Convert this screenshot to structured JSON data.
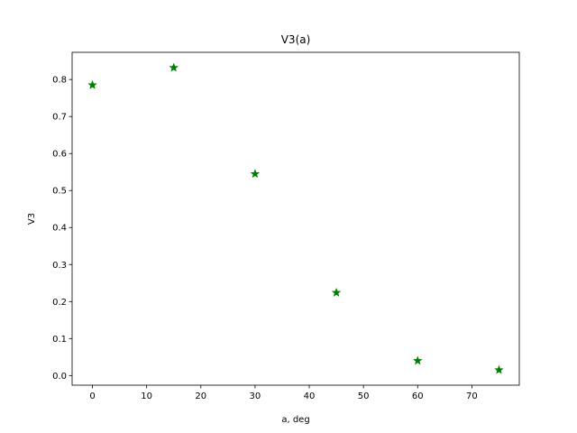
{
  "chart_data": {
    "type": "scatter",
    "title": "V3(a)",
    "xlabel": "a, deg",
    "ylabel": "V3",
    "x": [
      0,
      15,
      30,
      45,
      60,
      75
    ],
    "y": [
      0.785,
      0.832,
      0.545,
      0.224,
      0.04,
      0.015
    ],
    "xlim": [
      -3.75,
      78.75
    ],
    "ylim": [
      -0.026,
      0.8735
    ],
    "xticks": [
      0,
      10,
      20,
      30,
      40,
      50,
      60,
      70
    ],
    "yticks": [
      0.0,
      0.1,
      0.2,
      0.3,
      0.4,
      0.5,
      0.6,
      0.7,
      0.8
    ],
    "marker": "star",
    "marker_color": "#008000",
    "grid": false,
    "legend": "none"
  }
}
